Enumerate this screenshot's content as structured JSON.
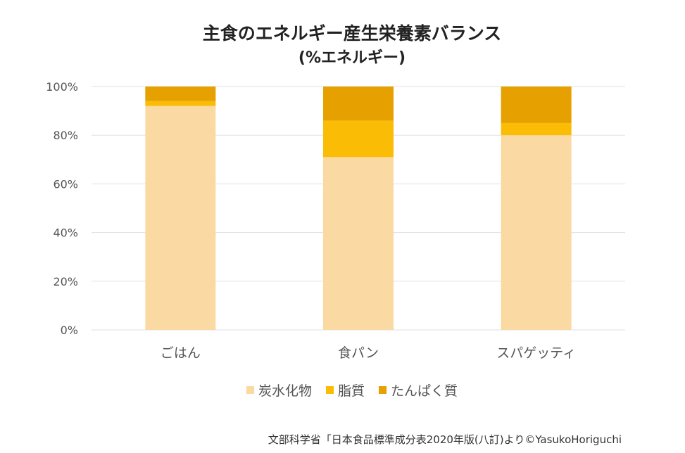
{
  "chart_data": {
    "type": "bar",
    "stacked": true,
    "title": "主食のエネルギー産生栄養素バランス",
    "subtitle": "(%エネルギー)",
    "categories": [
      "ごはん",
      "食パン",
      "スパゲッティ"
    ],
    "series": [
      {
        "name": "炭水化物",
        "values": [
          92,
          71,
          80
        ],
        "color": "#fbd9a3"
      },
      {
        "name": "脂質",
        "values": [
          2,
          15,
          5
        ],
        "color": "#fbbc05"
      },
      {
        "name": "たんぱく質",
        "values": [
          6,
          14,
          15
        ],
        "color": "#e6a000"
      }
    ],
    "y_ticks": [
      "0%",
      "20%",
      "40%",
      "60%",
      "80%",
      "100%"
    ],
    "ylim": [
      0,
      100
    ],
    "grid": true,
    "legend_position": "bottom"
  },
  "source_text": "文部科学省「日本食品標準成分表2020年版(八訂)より©YasukoHoriguchi"
}
